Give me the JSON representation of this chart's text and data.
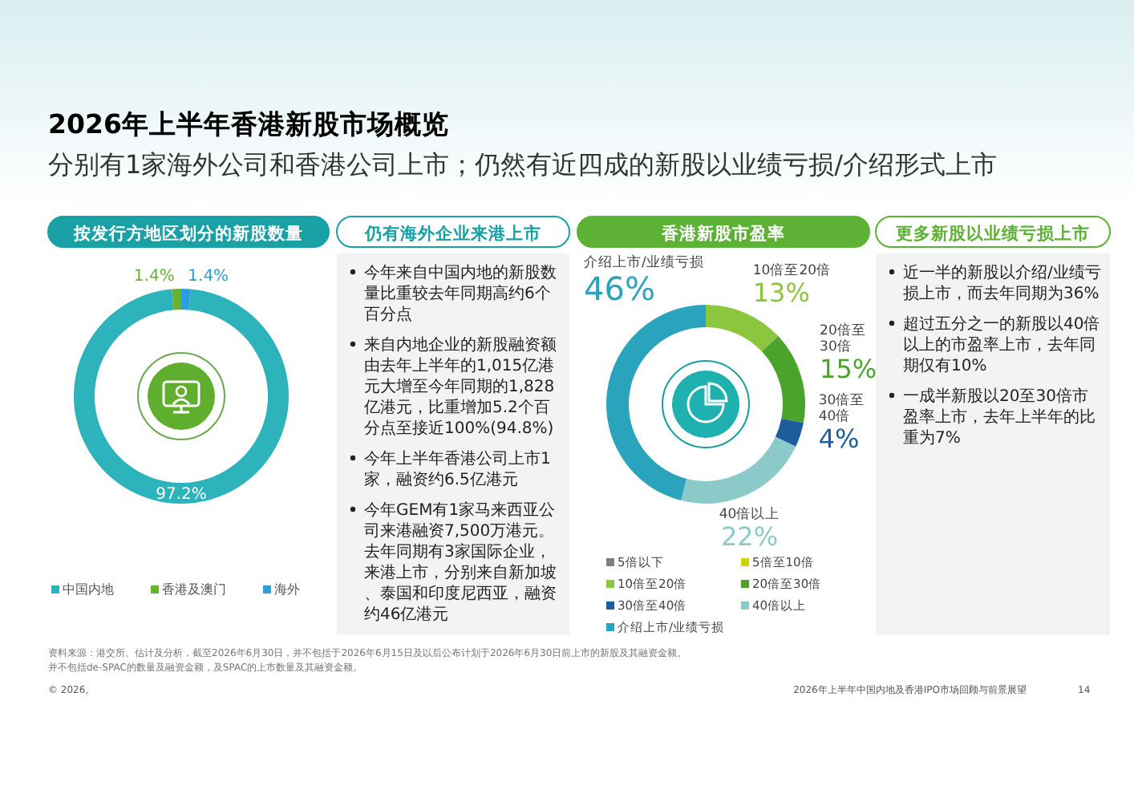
{
  "chart_data": [
    {
      "type": "other",
      "title": "2026年上半年香港新股市场概览",
      "subtitle": "分别有1家海外公司和香港公司上市；仍然有近四成的新股以业绩亏损/介绍形式上市",
      "annotations": [
        "资料来源：港交所、估计及分析，截至2026年6月30日，并不包括于2026年6月15日及以后公布计划于2026年6月30日前上市的新股及其融资金额。",
        "并不包括de-SPAC的数量及融资金额，及SPAC的上市数量及其融资金额。",
        "© 2026。",
        "2026年上半年中国内地及香港IPO市场回顾与前景展望",
        "14"
      ]
    },
    {
      "type": "donut",
      "title": "按发行方地区划分的新股数量",
      "categories": [
        "中国内地",
        "香港及澳门",
        "海外"
      ],
      "values": [
        97.2,
        1.4,
        1.4
      ],
      "colors": [
        "#2db3bc",
        "#67b32e",
        "#2b9fd9"
      ],
      "value_labels": [
        "97.2%",
        "1.4%",
        "1.4%"
      ],
      "legend": "bottom"
    },
    {
      "type": "other",
      "title": "仍有海外企业来港上市",
      "annotations": [
        "今年来自中国内地的新股数量比重较去年同期高约6个百分点",
        "来自内地企业的新股融资额由去年上半年的1,015亿港元大增至今年同期的1,828亿港元，比重增加5.2个百分点至接近100%(94.8%)",
        "今年上半年香港公司上市1家，融资约6.5亿港元",
        "今年GEM有1家马来西亚公司来港融资7,500万港元。去年同期有3家国际企业，来港上市，分别来自新加坡、泰国和印度尼西亚，融资约46亿港元"
      ]
    },
    {
      "type": "donut",
      "title": "香港新股市盈率",
      "categories": [
        "5倍以下",
        "5倍至10倍",
        "10倍至20倍",
        "20倍至30倍",
        "30倍至40倍",
        "40倍以上",
        "介绍上市/业绩亏损"
      ],
      "values": [
        0,
        0,
        13,
        15,
        4,
        22,
        46
      ],
      "colors": [
        "#7f7f7f",
        "#d2d200",
        "#8cc63f",
        "#4ca32c",
        "#1f5c9e",
        "#8ccaca",
        "#2aa3bd"
      ],
      "value_labels": [
        null,
        null,
        "13%",
        "15%",
        "4%",
        "22%",
        "46%"
      ],
      "legend": "bottom"
    },
    {
      "type": "other",
      "title": "更多新股以业绩亏损上市",
      "annotations": [
        "近一半的新股以介绍/业绩亏损上市，而去年同期为36%",
        "超过五分之一的新股以40倍以上的市盈率上市，去年同期仅有10%",
        "一成半新股以20至30倍市盈率上市，去年上半年的比重为7%"
      ]
    }
  ]
}
